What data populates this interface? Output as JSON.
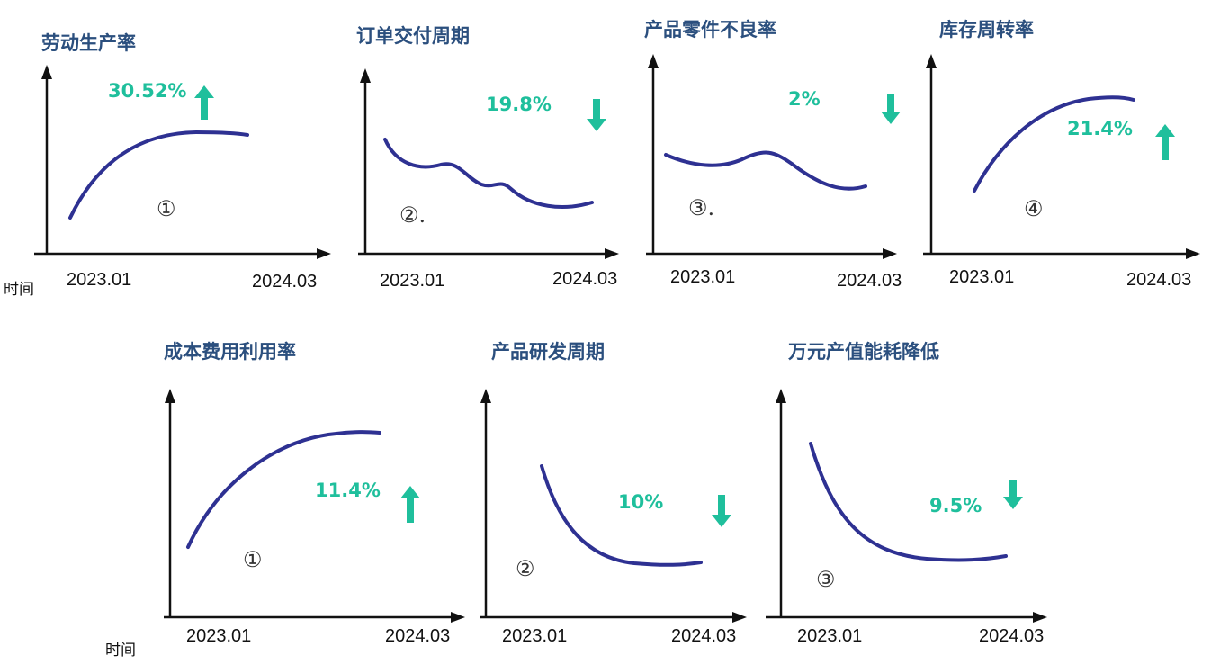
{
  "y_label": "时间",
  "chart_data": [
    {
      "type": "line",
      "title": "劳动生产率",
      "change": "30.52%",
      "direction": "up",
      "marker": "①",
      "x_ticks": [
        "2023.01",
        "2024.03"
      ],
      "trend": "rising-then-leveling"
    },
    {
      "type": "line",
      "title": "订单交付周期",
      "change": "19.8%",
      "direction": "down",
      "marker": "②.",
      "x_ticks": [
        "2023.01",
        "2024.03"
      ],
      "trend": "wavy-decline"
    },
    {
      "type": "line",
      "title": "产品零件不良率",
      "change": "2%",
      "direction": "down",
      "marker": "③.",
      "x_ticks": [
        "2023.01",
        "2024.03"
      ],
      "trend": "wavy-decline"
    },
    {
      "type": "line",
      "title": "库存周转率",
      "change": "21.4%",
      "direction": "up",
      "marker": "④",
      "x_ticks": [
        "2023.01",
        "2024.03"
      ],
      "trend": "rising-then-leveling"
    },
    {
      "type": "line",
      "title": "成本费用利用率",
      "change": "11.4%",
      "direction": "up",
      "marker": "①",
      "x_ticks": [
        "2023.01",
        "2024.03"
      ],
      "trend": "rising-then-leveling"
    },
    {
      "type": "line",
      "title": "产品研发周期",
      "change": "10%",
      "direction": "down",
      "marker": "②",
      "x_ticks": [
        "2023.01",
        "2024.03"
      ],
      "trend": "decay"
    },
    {
      "type": "line",
      "title": "万元产值能耗降低",
      "change": "9.5%",
      "direction": "down",
      "marker": "③",
      "x_ticks": [
        "2023.01",
        "2024.03"
      ],
      "trend": "decay"
    }
  ],
  "colors": {
    "title": "#2b4f7e",
    "change": "#1fbf9c",
    "curve": "#2e3192",
    "axis": "#111111"
  }
}
